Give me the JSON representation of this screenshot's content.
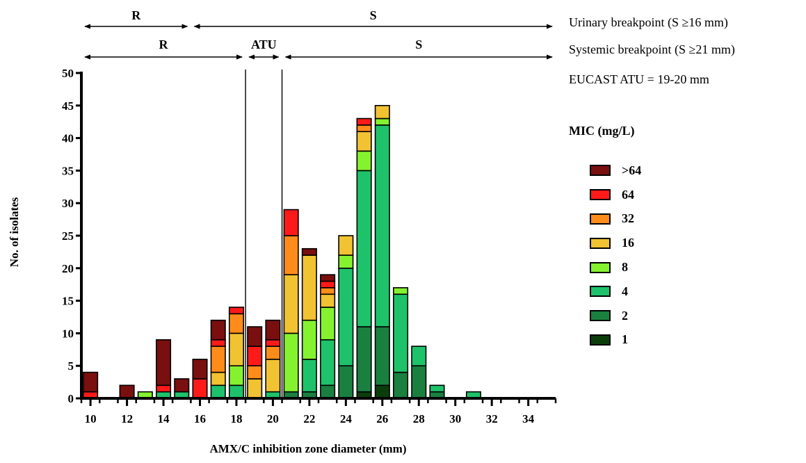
{
  "side_notes": {
    "urinary": "Urinary breakpoint (S ≥16 mm)",
    "systemic": "Systemic breakpoint (S ≥21 mm)",
    "atu": "EUCAST ATU = 19-20 mm"
  },
  "legend_title": "MIC (mg/L)",
  "chart_data": {
    "type": "bar",
    "stacked": true,
    "xlabel": "AMX/C inhibition zone diameter (mm)",
    "ylabel": "No. of isolates",
    "ylim": [
      0,
      50
    ],
    "yticks": [
      0,
      5,
      10,
      15,
      20,
      25,
      30,
      35,
      40,
      45,
      50
    ],
    "xlim": [
      9.5,
      35.5
    ],
    "xticks": [
      10,
      12,
      14,
      16,
      18,
      20,
      22,
      24,
      26,
      28,
      30,
      32,
      34
    ],
    "categories": [
      10,
      12,
      13,
      14,
      15,
      16,
      17,
      18,
      19,
      20,
      21,
      22,
      23,
      24,
      25,
      26,
      27,
      28,
      29,
      31
    ],
    "series": [
      {
        "name": "1",
        "color": "#0b3d0b",
        "values": [
          0,
          0,
          0,
          0,
          0,
          0,
          0,
          0,
          0,
          0,
          0,
          0,
          0,
          0,
          1,
          2,
          0,
          0,
          0,
          0
        ]
      },
      {
        "name": "2",
        "color": "#1a8040",
        "values": [
          0,
          0,
          0,
          0,
          0,
          0,
          0,
          0,
          0,
          0,
          1,
          1,
          2,
          5,
          10,
          9,
          4,
          5,
          1,
          0
        ]
      },
      {
        "name": "4",
        "color": "#1ec26a",
        "values": [
          0,
          0,
          0,
          1,
          1,
          0,
          2,
          2,
          0,
          1,
          0,
          5,
          7,
          15,
          24,
          31,
          12,
          3,
          1,
          1
        ]
      },
      {
        "name": "8",
        "color": "#85f22f",
        "values": [
          0,
          0,
          1,
          0,
          0,
          0,
          0,
          3,
          0,
          0,
          9,
          6,
          5,
          2,
          3,
          1,
          1,
          0,
          0,
          0
        ]
      },
      {
        "name": "16",
        "color": "#f1c232",
        "values": [
          0,
          0,
          0,
          0,
          0,
          0,
          2,
          5,
          3,
          5,
          9,
          10,
          2,
          3,
          3,
          2,
          0,
          0,
          0,
          0
        ]
      },
      {
        "name": "32",
        "color": "#ff8c1a",
        "values": [
          0,
          0,
          0,
          0,
          0,
          0,
          4,
          3,
          2,
          2,
          6,
          0,
          1,
          0,
          1,
          0,
          0,
          0,
          0,
          0
        ]
      },
      {
        "name": "64",
        "color": "#ff1a1a",
        "values": [
          1,
          0,
          0,
          1,
          0,
          3,
          1,
          1,
          3,
          1,
          4,
          0,
          1,
          0,
          1,
          0,
          0,
          0,
          0,
          0
        ]
      },
      {
        "name": ">64",
        "color": "#7a0f0f",
        "values": [
          3,
          2,
          0,
          7,
          2,
          3,
          3,
          0,
          3,
          3,
          0,
          1,
          1,
          0,
          0,
          0,
          0,
          0,
          0,
          0
        ]
      }
    ],
    "annotations": {
      "urinary_row": [
        {
          "label": "R",
          "from": 9.5,
          "to": 15.5
        },
        {
          "label": "S",
          "from": 15.5,
          "to": 35.5
        }
      ],
      "systemic_row": [
        {
          "label": "R",
          "from": 9.5,
          "to": 18.5
        },
        {
          "label": "ATU",
          "from": 18.5,
          "to": 20.5
        },
        {
          "label": "S",
          "from": 20.5,
          "to": 35.5
        }
      ],
      "breakpoint_lines": [
        18.5,
        20.5
      ]
    }
  }
}
